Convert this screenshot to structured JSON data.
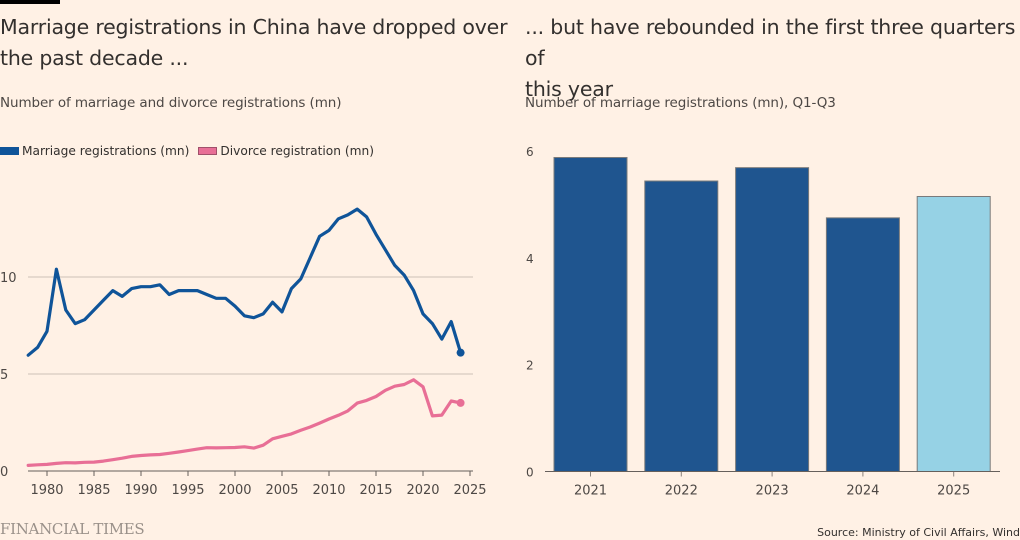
{
  "left": {
    "title_line1": "Marriage registrations in China have dropped over",
    "title_line2": "the past decade ...",
    "subtitle": "Number of marriage and divorce registrations (mn)",
    "legend": [
      {
        "label": "Marriage registrations (mn)",
        "color": "#0f5499"
      },
      {
        "label": "Divorce registration (mn)",
        "color": "#e86f96"
      }
    ]
  },
  "right": {
    "title_line1": "... but have rebounded in the first three quarters of",
    "title_line2": "this year",
    "subtitle": "Number of marriage registrations (mn), Q1-Q3"
  },
  "footer": {
    "logo": "FINANCIAL TIMES",
    "source": "Source: Ministry of Civil Affairs, Wind"
  },
  "chart_data": [
    {
      "type": "line",
      "title": "Marriage registrations in China have dropped over the past decade ...",
      "subtitle": "Number of marriage and divorce registrations (mn)",
      "xlabel": "",
      "ylabel": "",
      "xlim": [
        1978,
        2025
      ],
      "ylim": [
        0,
        15
      ],
      "x_ticks": [
        1980,
        1985,
        1990,
        1995,
        2000,
        2005,
        2010,
        2015,
        2020,
        2025
      ],
      "y_ticks": [
        0,
        5,
        10
      ],
      "grid": true,
      "legend_position": "top-left",
      "x": [
        1978,
        1979,
        1980,
        1981,
        1982,
        1983,
        1984,
        1985,
        1986,
        1987,
        1988,
        1989,
        1990,
        1991,
        1992,
        1993,
        1994,
        1995,
        1996,
        1997,
        1998,
        1999,
        2000,
        2001,
        2002,
        2003,
        2004,
        2005,
        2006,
        2007,
        2008,
        2009,
        2010,
        2011,
        2012,
        2013,
        2014,
        2015,
        2016,
        2017,
        2018,
        2019,
        2020,
        2021,
        2022,
        2023,
        2024
      ],
      "series": [
        {
          "name": "Marriage registrations (mn)",
          "color": "#0f5499",
          "end_marker": true,
          "values": [
            5.97,
            6.37,
            7.2,
            10.4,
            8.3,
            7.6,
            7.8,
            8.3,
            8.8,
            9.3,
            9.0,
            9.4,
            9.5,
            9.5,
            9.6,
            9.1,
            9.3,
            9.3,
            9.3,
            9.1,
            8.9,
            8.9,
            8.5,
            8.0,
            7.9,
            8.1,
            8.7,
            8.2,
            9.4,
            9.9,
            11.0,
            12.1,
            12.4,
            13.0,
            13.2,
            13.5,
            13.1,
            12.2,
            11.4,
            10.6,
            10.1,
            9.3,
            8.1,
            7.6,
            6.8,
            7.7,
            6.1
          ]
        },
        {
          "name": "Divorce registration (mn)",
          "color": "#e86f96",
          "end_marker": true,
          "values": [
            0.29,
            0.32,
            0.34,
            0.39,
            0.43,
            0.42,
            0.45,
            0.46,
            0.51,
            0.58,
            0.66,
            0.75,
            0.8,
            0.83,
            0.85,
            0.91,
            0.98,
            1.05,
            1.13,
            1.2,
            1.19,
            1.2,
            1.21,
            1.25,
            1.18,
            1.33,
            1.66,
            1.79,
            1.91,
            2.1,
            2.27,
            2.47,
            2.68,
            2.87,
            3.1,
            3.5,
            3.64,
            3.84,
            4.16,
            4.37,
            4.46,
            4.7,
            4.34,
            2.84,
            2.88,
            3.61,
            3.51
          ]
        }
      ]
    },
    {
      "type": "bar",
      "title": "... but have rebounded in the first three quarters of this year",
      "subtitle": "Number of marriage registrations (mn), Q1-Q3",
      "xlabel": "",
      "ylabel": "",
      "ylim": [
        0,
        6
      ],
      "y_ticks": [
        0,
        2,
        4,
        6
      ],
      "grid": false,
      "categories": [
        "2021",
        "2022",
        "2023",
        "2024",
        "2025"
      ],
      "values": [
        5.88,
        5.44,
        5.69,
        4.75,
        5.15
      ],
      "colors": [
        "#1f558f",
        "#1f558f",
        "#1f558f",
        "#1f558f",
        "#96d2e5"
      ]
    }
  ]
}
